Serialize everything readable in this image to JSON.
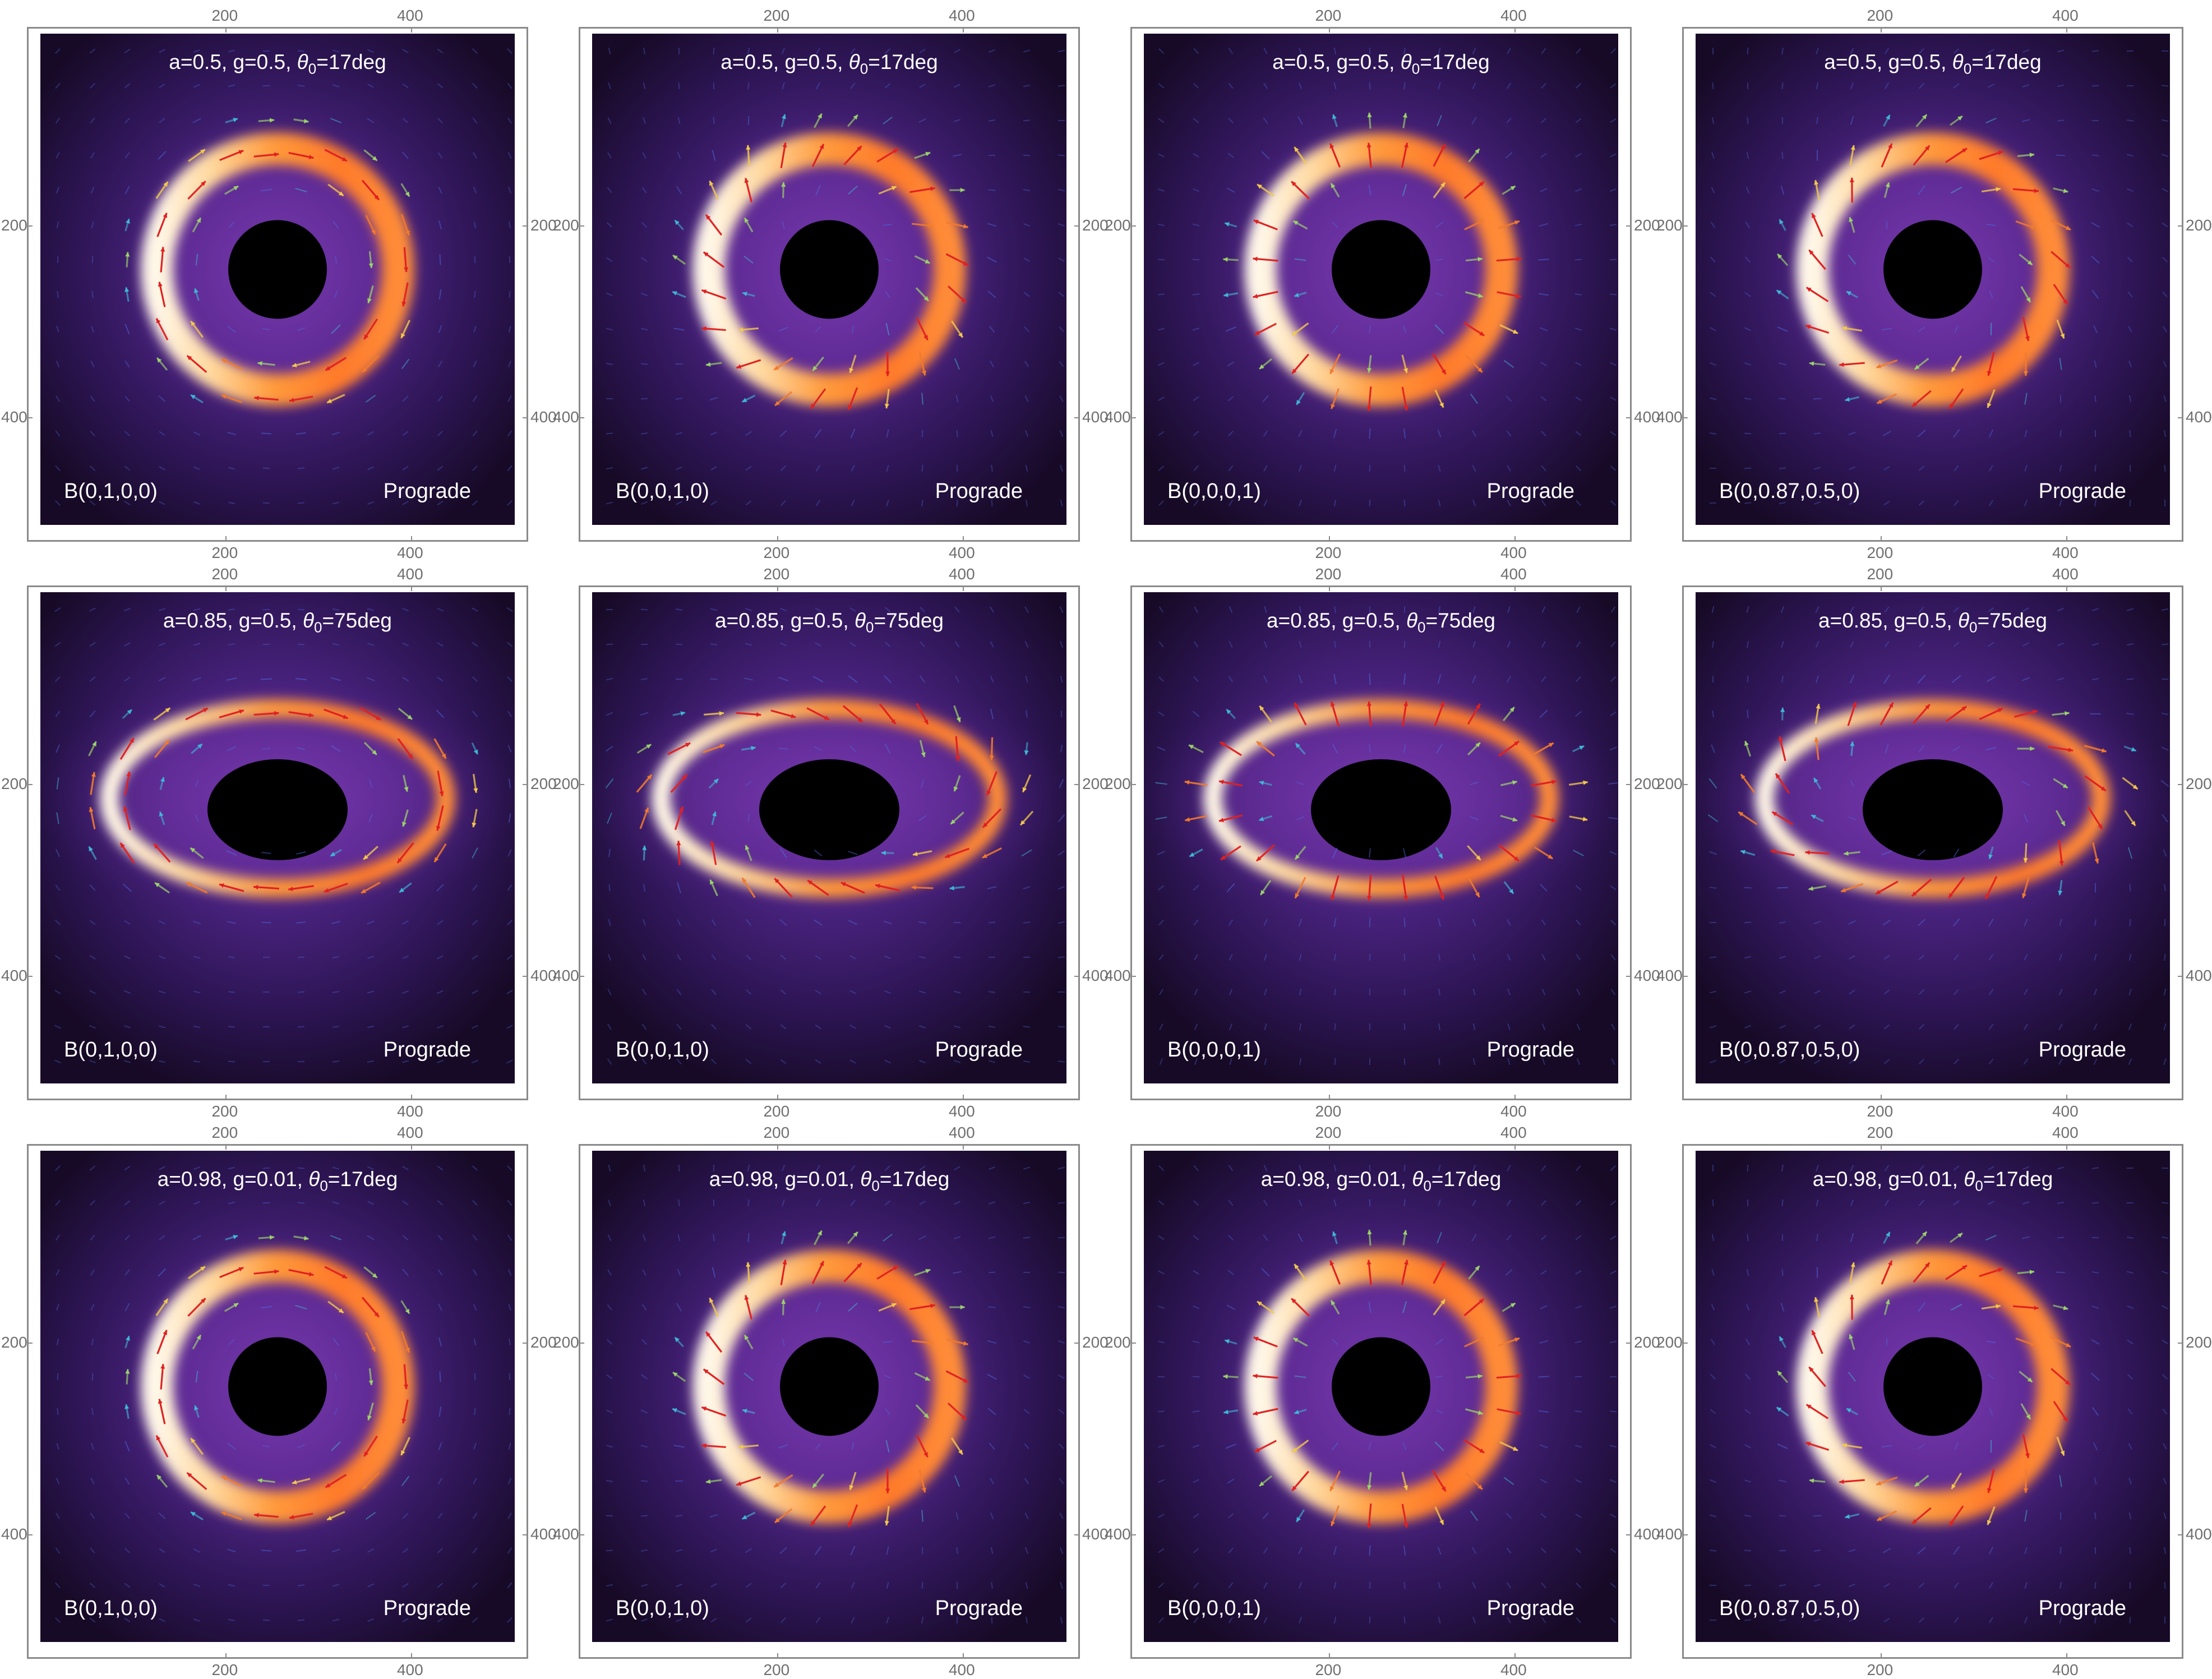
{
  "chart_data": [
    {
      "type": "heatmap",
      "title": "a=0.5, g=0.5, θ0=17deg",
      "a": "0.5",
      "g": "0.5",
      "theta0": "17deg",
      "field": "B(0,1,0,0)",
      "direction": "Prograde",
      "xticks": [
        "200",
        "400"
      ],
      "yticks": [
        "200",
        "400"
      ],
      "xlim": [
        0,
        512
      ],
      "ylim": [
        0,
        512
      ]
    },
    {
      "type": "heatmap",
      "title": "a=0.5, g=0.5, θ0=17deg",
      "a": "0.5",
      "g": "0.5",
      "theta0": "17deg",
      "field": "B(0,0,1,0)",
      "direction": "Prograde",
      "xticks": [
        "200",
        "400"
      ],
      "yticks": [
        "200",
        "400"
      ],
      "xlim": [
        0,
        512
      ],
      "ylim": [
        0,
        512
      ]
    },
    {
      "type": "heatmap",
      "title": "a=0.5, g=0.5, θ0=17deg",
      "a": "0.5",
      "g": "0.5",
      "theta0": "17deg",
      "field": "B(0,0,0,1)",
      "direction": "Prograde",
      "xticks": [
        "200",
        "400"
      ],
      "yticks": [
        "200",
        "400"
      ],
      "xlim": [
        0,
        512
      ],
      "ylim": [
        0,
        512
      ]
    },
    {
      "type": "heatmap",
      "title": "a=0.5, g=0.5, θ0=17deg",
      "a": "0.5",
      "g": "0.5",
      "theta0": "17deg",
      "field": "B(0,0.87,0.5,0)",
      "direction": "Prograde",
      "xticks": [
        "200",
        "400"
      ],
      "yticks": [
        "200",
        "400"
      ],
      "xlim": [
        0,
        512
      ],
      "ylim": [
        0,
        512
      ]
    },
    {
      "type": "heatmap",
      "title": "a=0.85, g=0.5, θ0=75deg",
      "a": "0.85",
      "g": "0.5",
      "theta0": "75deg",
      "field": "B(0,1,0,0)",
      "direction": "Prograde",
      "xticks": [
        "200",
        "400"
      ],
      "yticks": [
        "200",
        "400"
      ],
      "xlim": [
        0,
        512
      ],
      "ylim": [
        0,
        512
      ]
    },
    {
      "type": "heatmap",
      "title": "a=0.85, g=0.5, θ0=75deg",
      "a": "0.85",
      "g": "0.5",
      "theta0": "75deg",
      "field": "B(0,0,1,0)",
      "direction": "Prograde",
      "xticks": [
        "200",
        "400"
      ],
      "yticks": [
        "200",
        "400"
      ],
      "xlim": [
        0,
        512
      ],
      "ylim": [
        0,
        512
      ]
    },
    {
      "type": "heatmap",
      "title": "a=0.85, g=0.5, θ0=75deg",
      "a": "0.85",
      "g": "0.5",
      "theta0": "75deg",
      "field": "B(0,0,0,1)",
      "direction": "Prograde",
      "xticks": [
        "200",
        "400"
      ],
      "yticks": [
        "200",
        "400"
      ],
      "xlim": [
        0,
        512
      ],
      "ylim": [
        0,
        512
      ]
    },
    {
      "type": "heatmap",
      "title": "a=0.85, g=0.5, θ0=75deg",
      "a": "0.85",
      "g": "0.5",
      "theta0": "75deg",
      "field": "B(0,0.87,0.5,0)",
      "direction": "Prograde",
      "xticks": [
        "200",
        "400"
      ],
      "yticks": [
        "200",
        "400"
      ],
      "xlim": [
        0,
        512
      ],
      "ylim": [
        0,
        512
      ]
    },
    {
      "type": "heatmap",
      "title": "a=0.98, g=0.01, θ0=17deg",
      "a": "0.98",
      "g": "0.01",
      "theta0": "17deg",
      "field": "B(0,1,0,0)",
      "direction": "Prograde",
      "xticks": [
        "200",
        "400"
      ],
      "yticks": [
        "200",
        "400"
      ],
      "xlim": [
        0,
        512
      ],
      "ylim": [
        0,
        512
      ]
    },
    {
      "type": "heatmap",
      "title": "a=0.98, g=0.01, θ0=17deg",
      "a": "0.98",
      "g": "0.01",
      "theta0": "17deg",
      "field": "B(0,0,1,0)",
      "direction": "Prograde",
      "xticks": [
        "200",
        "400"
      ],
      "yticks": [
        "200",
        "400"
      ],
      "xlim": [
        0,
        512
      ],
      "ylim": [
        0,
        512
      ]
    },
    {
      "type": "heatmap",
      "title": "a=0.98, g=0.01, θ0=17deg",
      "a": "0.98",
      "g": "0.01",
      "theta0": "17deg",
      "field": "B(0,0,0,1)",
      "direction": "Prograde",
      "xticks": [
        "200",
        "400"
      ],
      "yticks": [
        "200",
        "400"
      ],
      "xlim": [
        0,
        512
      ],
      "ylim": [
        0,
        512
      ]
    },
    {
      "type": "heatmap",
      "title": "a=0.98, g=0.01, θ0=17deg",
      "a": "0.98",
      "g": "0.01",
      "theta0": "17deg",
      "field": "B(0,0.87,0.5,0)",
      "direction": "Prograde",
      "xticks": [
        "200",
        "400"
      ],
      "yticks": [
        "200",
        "400"
      ],
      "xlim": [
        0,
        512
      ],
      "ylim": [
        0,
        512
      ]
    }
  ]
}
